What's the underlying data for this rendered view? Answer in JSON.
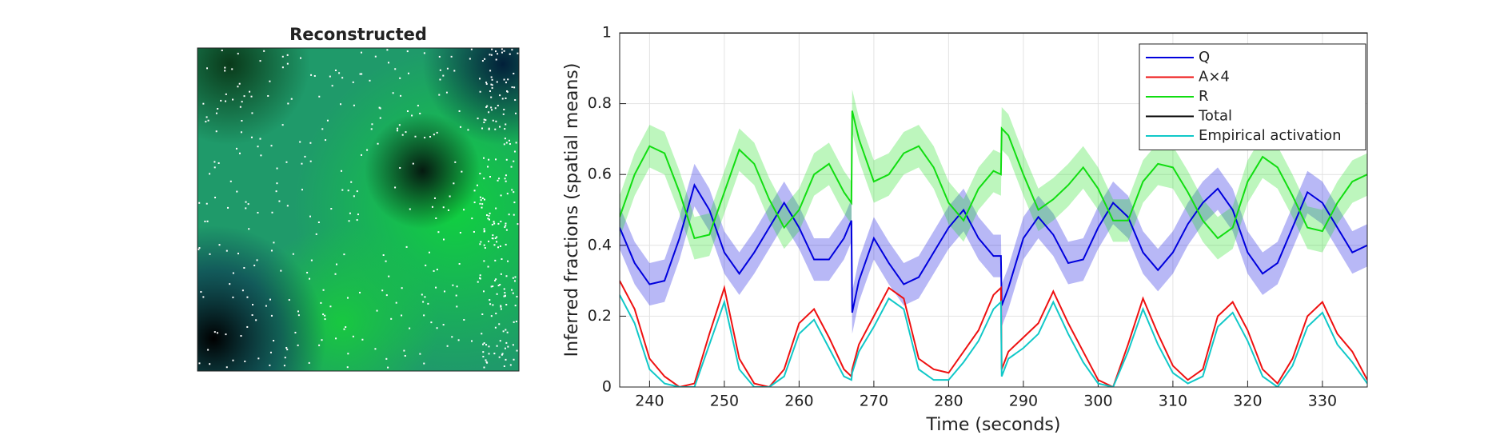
{
  "image_panel": {
    "title": "Reconstructed"
  },
  "chart_data": {
    "type": "line",
    "xlabel": "Time (seconds)",
    "ylabel": "Inferred fractions (spatial means)",
    "xlim": [
      236,
      336
    ],
    "xticks": [
      240,
      250,
      260,
      270,
      280,
      290,
      300,
      310,
      320,
      330
    ],
    "ylim": [
      0,
      1
    ],
    "yticks": [
      0,
      0.2,
      0.4,
      0.6,
      0.8,
      1
    ],
    "grid": true,
    "legend": "top-right",
    "x": [
      236,
      238,
      240,
      242,
      244,
      246,
      248,
      250,
      252,
      254,
      256,
      258,
      260,
      262,
      264,
      266,
      267,
      267.1,
      268,
      270,
      272,
      274,
      276,
      278,
      280,
      282,
      284,
      286,
      287,
      287.1,
      288,
      290,
      292,
      294,
      296,
      298,
      300,
      302,
      304,
      306,
      308,
      310,
      312,
      314,
      316,
      318,
      320,
      322,
      324,
      326,
      328,
      330,
      332,
      334,
      336
    ],
    "series": [
      {
        "name": "Q",
        "color": "#0000dd",
        "band": 0.06,
        "values": [
          0.45,
          0.35,
          0.29,
          0.3,
          0.42,
          0.57,
          0.5,
          0.38,
          0.32,
          0.38,
          0.45,
          0.52,
          0.45,
          0.36,
          0.36,
          0.42,
          0.47,
          0.21,
          0.3,
          0.42,
          0.35,
          0.29,
          0.31,
          0.38,
          0.45,
          0.5,
          0.42,
          0.37,
          0.37,
          0.23,
          0.28,
          0.42,
          0.48,
          0.43,
          0.35,
          0.36,
          0.45,
          0.52,
          0.48,
          0.38,
          0.33,
          0.38,
          0.46,
          0.52,
          0.56,
          0.5,
          0.38,
          0.32,
          0.35,
          0.45,
          0.55,
          0.52,
          0.45,
          0.38,
          0.4
        ]
      },
      {
        "name": "A×4",
        "color": "#ee1111",
        "values": [
          0.3,
          0.22,
          0.08,
          0.03,
          0,
          0.01,
          0.15,
          0.28,
          0.08,
          0.01,
          0,
          0.05,
          0.18,
          0.22,
          0.14,
          0.05,
          0.03,
          0.05,
          0.12,
          0.2,
          0.28,
          0.25,
          0.08,
          0.05,
          0.04,
          0.1,
          0.16,
          0.26,
          0.28,
          0.05,
          0.1,
          0.14,
          0.18,
          0.27,
          0.18,
          0.1,
          0.02,
          0,
          0.12,
          0.25,
          0.15,
          0.06,
          0.02,
          0.05,
          0.2,
          0.24,
          0.16,
          0.05,
          0.01,
          0.08,
          0.2,
          0.24,
          0.15,
          0.1,
          0.02
        ]
      },
      {
        "name": "R",
        "color": "#11dd11",
        "band": 0.06,
        "values": [
          0.48,
          0.6,
          0.68,
          0.66,
          0.55,
          0.42,
          0.43,
          0.55,
          0.67,
          0.63,
          0.53,
          0.45,
          0.5,
          0.6,
          0.63,
          0.55,
          0.52,
          0.78,
          0.7,
          0.58,
          0.6,
          0.66,
          0.68,
          0.62,
          0.52,
          0.47,
          0.56,
          0.61,
          0.6,
          0.73,
          0.71,
          0.6,
          0.5,
          0.53,
          0.57,
          0.62,
          0.56,
          0.47,
          0.47,
          0.58,
          0.63,
          0.62,
          0.55,
          0.47,
          0.42,
          0.45,
          0.58,
          0.65,
          0.62,
          0.54,
          0.45,
          0.44,
          0.52,
          0.58,
          0.6
        ]
      },
      {
        "name": "Total",
        "color": "#000000",
        "values": [
          1,
          1,
          1,
          1,
          1,
          1,
          1,
          1,
          1,
          1,
          1,
          1,
          1,
          1,
          1,
          1,
          1,
          1,
          1,
          1,
          1,
          1,
          1,
          1,
          1,
          1,
          1,
          1,
          1,
          1,
          1,
          1,
          1,
          1,
          1,
          1,
          1,
          1,
          1,
          1,
          1,
          1,
          1,
          1,
          1,
          1,
          1,
          1,
          1,
          1,
          1,
          1,
          1,
          1,
          1
        ]
      },
      {
        "name": "Empirical activation",
        "color": "#11c8c8",
        "values": [
          0.26,
          0.18,
          0.05,
          0.01,
          0,
          0,
          0.12,
          0.24,
          0.05,
          0,
          0,
          0.03,
          0.15,
          0.19,
          0.11,
          0.03,
          0.02,
          0.04,
          0.1,
          0.17,
          0.25,
          0.22,
          0.05,
          0.02,
          0.02,
          0.07,
          0.13,
          0.22,
          0.24,
          0.03,
          0.08,
          0.11,
          0.15,
          0.24,
          0.15,
          0.07,
          0.01,
          0,
          0.1,
          0.22,
          0.12,
          0.04,
          0.01,
          0.03,
          0.17,
          0.21,
          0.13,
          0.03,
          0,
          0.06,
          0.17,
          0.21,
          0.12,
          0.07,
          0.01
        ]
      }
    ]
  }
}
